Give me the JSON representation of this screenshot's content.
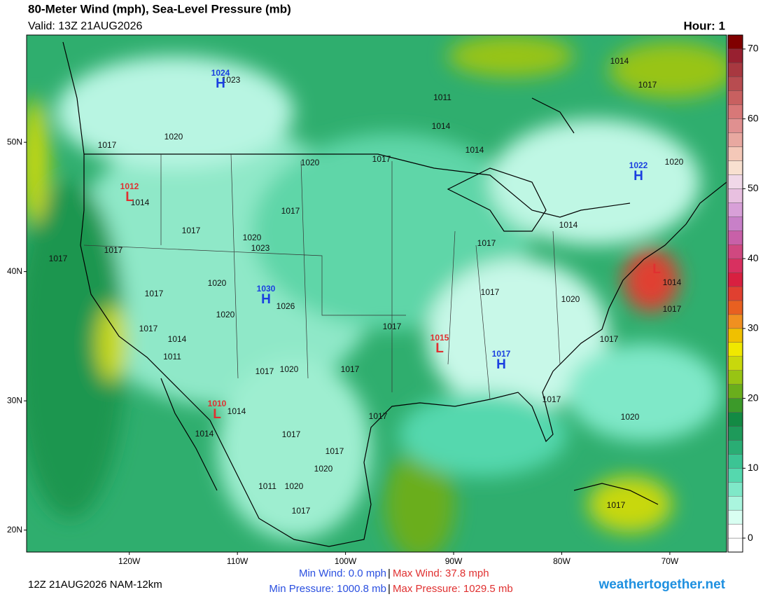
{
  "header": {
    "title": "80-Meter Wind (mph), Sea-Level Pressure (mb)",
    "valid": "Valid: 13Z 21AUG2026",
    "hour": "Hour: 1"
  },
  "map": {
    "lat_ticks": [
      {
        "value": 50,
        "label": "50N"
      },
      {
        "value": 40,
        "label": "40N"
      },
      {
        "value": 30,
        "label": "30N"
      },
      {
        "value": 20,
        "label": "20N"
      }
    ],
    "lon_ticks": [
      {
        "value": -120,
        "label": "120W"
      },
      {
        "value": -110,
        "label": "110W"
      },
      {
        "value": -100,
        "label": "100W"
      },
      {
        "value": -90,
        "label": "90W"
      },
      {
        "value": -80,
        "label": "80W"
      },
      {
        "value": -70,
        "label": "70W"
      }
    ],
    "latlim": [
      18.3,
      58.3
    ],
    "lonlim": [
      -129.5,
      -64.75
    ],
    "centers": [
      {
        "type": "H",
        "pressure": 1024
      },
      {
        "type": "L",
        "pressure": 1012
      },
      {
        "type": "H",
        "pressure": 1030
      },
      {
        "type": "L",
        "pressure": 1010
      },
      {
        "type": "L",
        "pressure": 1015
      },
      {
        "type": "H",
        "pressure": 1017
      },
      {
        "type": "H",
        "pressure": 1022
      },
      {
        "type": "L"
      }
    ],
    "isobar_labels": [
      1014,
      1017,
      1011,
      1014,
      1014,
      1020,
      1023,
      1020,
      1017,
      1017,
      1020,
      1014,
      1017,
      1017,
      1020,
      1023,
      1017,
      1017,
      1017,
      1014,
      1017,
      1020,
      1026,
      1020,
      1017,
      1020,
      1014,
      1017,
      1017,
      1014,
      1011,
      1017,
      1017,
      1017,
      1020,
      1017,
      1014,
      1014,
      1017,
      1017,
      1017,
      1020,
      1017,
      1020,
      1011,
      1020,
      1017,
      1017
    ]
  },
  "colorbar": {
    "range": [
      -2,
      72
    ],
    "ticks": [
      0,
      10,
      20,
      30,
      40,
      50,
      60,
      70
    ],
    "colors": [
      "#ffffff",
      "#ffffff",
      "#d9fff2",
      "#aaf5de",
      "#7fe8c8",
      "#55d8ae",
      "#3cc494",
      "#2aad74",
      "#1e9a5a",
      "#138a44",
      "#3c9a2a",
      "#6aae1c",
      "#98c414",
      "#c8d80c",
      "#f0e800",
      "#f0c000",
      "#f09020",
      "#e86020",
      "#e04030",
      "#d82040",
      "#d83060",
      "#d04880",
      "#c860a8",
      "#c880c8",
      "#d8a0d8",
      "#e8c0e0",
      "#f0d8e8",
      "#f8e0d0",
      "#f4c8b8",
      "#e8a8a0",
      "#e09090",
      "#d87878",
      "#c86060",
      "#b84c50",
      "#a83840",
      "#982030",
      "#800000"
    ]
  },
  "footer": {
    "run": "12Z 21AUG2026 NAM-12km",
    "min_wind": "Min Wind:  0.0 mph",
    "max_wind": "Max Wind:  37.8 mph",
    "separator": "|",
    "min_pressure": "Min Pressure: 1000.8 mb",
    "max_pressure": "Max Pressure: 1029.5 mb",
    "site": "weathertogether.net"
  }
}
